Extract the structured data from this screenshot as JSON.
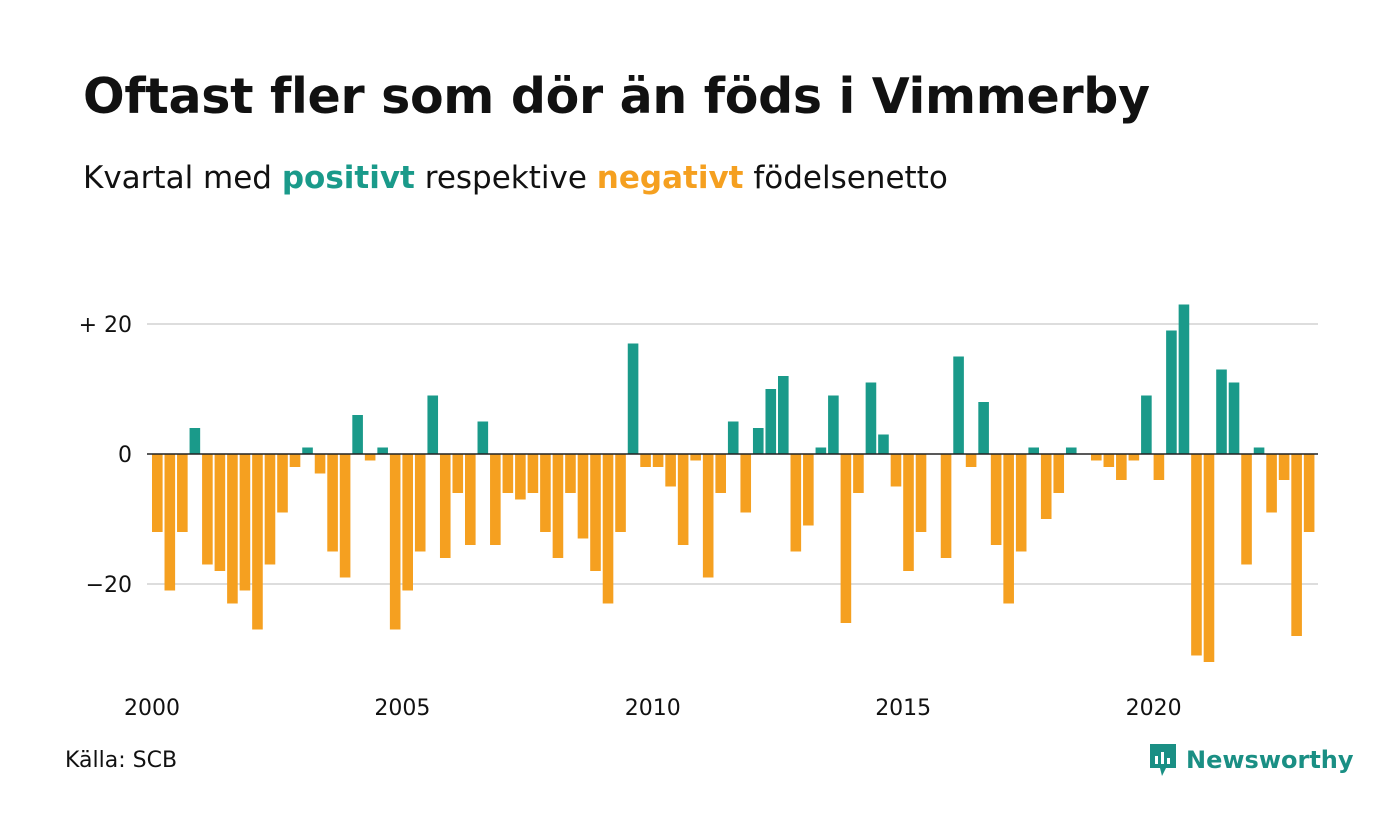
{
  "title": "Oftast fler som dör än föds i Vimmerby",
  "subtitle": {
    "part1": "Kvartal med",
    "positive_word": "positivt",
    "part2": "respektive",
    "negative_word": "negativt",
    "part3": "födelsenetto"
  },
  "source": "Källa: SCB",
  "logo": {
    "text": "Newsworthy",
    "icon": "newsworthy-logo-icon"
  },
  "colors": {
    "positive": "#1a9a8a",
    "negative": "#f5a020",
    "grid": "#dddddd",
    "zero": "#222222",
    "brand": "#1a8f84"
  },
  "chart_data": {
    "type": "bar",
    "title": "Oftast fler som dör än föds i Vimmerby",
    "subtitle": "Kvartal med positivt respektive negativt födelsenetto",
    "xlabel": "",
    "ylabel": "",
    "ylim": [
      -35,
      25
    ],
    "yticks": [
      20,
      0,
      -20
    ],
    "ytick_labels": [
      "+ 20",
      "0",
      "−20"
    ],
    "xtick_years": [
      2000,
      2005,
      2010,
      2015,
      2020
    ],
    "xtick_labels": [
      "2000",
      "2005",
      "2010",
      "2015",
      "2020"
    ],
    "start_year": 2000,
    "grid": true,
    "series": [
      {
        "values": [
          -12,
          -21,
          -12,
          4,
          -17,
          -18,
          -23,
          -21,
          -27,
          -17,
          -9,
          -2,
          1,
          -3,
          -15,
          -19,
          6,
          -1,
          1,
          -27,
          -21,
          -15,
          9,
          -16,
          -6,
          -14,
          5,
          -14,
          -6,
          -7,
          -6,
          -12,
          -16,
          -6,
          -13,
          -18,
          -23,
          -12,
          17,
          -2,
          -2,
          -5,
          -14,
          -1,
          -19,
          -6,
          5,
          -9,
          4,
          10,
          12,
          -15,
          -11,
          1,
          9,
          -26,
          -6,
          11,
          3,
          -5,
          -18,
          -12,
          0,
          -16,
          15,
          -2,
          8,
          -14,
          -23,
          -15,
          1,
          -10,
          -6,
          1,
          0,
          -1,
          -2,
          -4,
          -1,
          9,
          -4,
          19,
          23,
          -31,
          -32,
          13,
          11,
          -17,
          1,
          -9,
          -4,
          -28,
          -12
        ]
      }
    ]
  }
}
